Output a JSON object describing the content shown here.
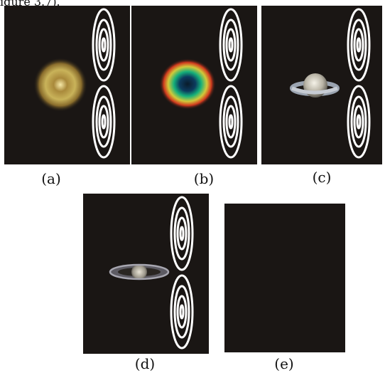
{
  "top_text": "igure 3.7).",
  "panels": [
    {
      "id": "a",
      "label": "(a)",
      "object": "planetary-nebula-yellow"
    },
    {
      "id": "b",
      "label": "(b)",
      "object": "ring-nebula-colored"
    },
    {
      "id": "c",
      "label": "(c)",
      "object": "saturn-edge-on"
    },
    {
      "id": "d",
      "label": "(d)",
      "object": "saturn-tilted"
    },
    {
      "id": "e",
      "label": "(e)",
      "object": "empty"
    }
  ],
  "colors": {
    "panel_background": "#1a1614",
    "rings": "#ffffff"
  }
}
